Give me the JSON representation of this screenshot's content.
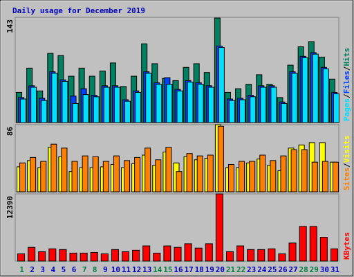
{
  "chart_data": [
    {
      "type": "bar",
      "title": "Daily usage for December 2019",
      "ylim": [
        0,
        143
      ],
      "yticks": [
        143
      ],
      "separator": "/",
      "series": [
        {
          "name": "Hits",
          "color": "#008060",
          "values": [
            41,
            74,
            43,
            94,
            91,
            63,
            74,
            63,
            70,
            81,
            49,
            63,
            107,
            80,
            60,
            57,
            75,
            80,
            68,
            142,
            41,
            46,
            52,
            65,
            52,
            34,
            78,
            103,
            110,
            89,
            59
          ]
        },
        {
          "name": "Files",
          "color": "#0040ff",
          "values": [
            34,
            50,
            33,
            69,
            58,
            36,
            46,
            37,
            50,
            50,
            31,
            43,
            69,
            54,
            61,
            45,
            57,
            54,
            50,
            104,
            32,
            33,
            37,
            50,
            50,
            28,
            69,
            90,
            95,
            75,
            41
          ]
        },
        {
          "name": "Pages",
          "color": "#00e0ff",
          "values": [
            32,
            48,
            30,
            67,
            56,
            26,
            38,
            35,
            48,
            48,
            29,
            41,
            67,
            52,
            52,
            43,
            55,
            52,
            48,
            102,
            30,
            31,
            35,
            48,
            48,
            26,
            67,
            88,
            93,
            73,
            39
          ]
        }
      ]
    },
    {
      "type": "bar",
      "ylim": [
        0,
        86
      ],
      "yticks": [
        86
      ],
      "separator": "/",
      "series": [
        {
          "name": "Visits",
          "color": "#ffff00",
          "values": [
            32,
            40,
            31,
            57,
            45,
            26,
            31,
            31,
            32,
            35,
            31,
            36,
            47,
            34,
            51,
            37,
            45,
            41,
            43,
            86,
            31,
            31,
            37,
            42,
            34,
            27,
            56,
            60,
            63,
            63,
            38
          ]
        },
        {
          "name": "Sites",
          "color": "#ff8000",
          "values": [
            37,
            44,
            39,
            61,
            56,
            39,
            46,
            45,
            39,
            46,
            40,
            44,
            56,
            41,
            57,
            26,
            49,
            46,
            47,
            84,
            35,
            39,
            39,
            47,
            40,
            46,
            54,
            54,
            38,
            39,
            38
          ]
        }
      ]
    },
    {
      "type": "bar",
      "ylim": [
        0,
        12390
      ],
      "yticks": [
        12390
      ],
      "categories": [
        "1",
        "2",
        "3",
        "4",
        "5",
        "6",
        "7",
        "8",
        "9",
        "10",
        "11",
        "12",
        "13",
        "14",
        "15",
        "16",
        "17",
        "18",
        "19",
        "20",
        "21",
        "22",
        "23",
        "24",
        "25",
        "26",
        "27",
        "28",
        "29",
        "30",
        "31"
      ],
      "label_colors": [
        "#008040",
        "#0000c0",
        "#0000c0",
        "#0000c0",
        "#0000c0",
        "#0000c0",
        "#008040",
        "#008040",
        "#0000c0",
        "#0000c0",
        "#0000c0",
        "#0000c0",
        "#0000c0",
        "#008040",
        "#008040",
        "#0000c0",
        "#0000c0",
        "#0000c0",
        "#0000c0",
        "#0000c0",
        "#008040",
        "#008040",
        "#0000c0",
        "#0000c0",
        "#0000c0",
        "#0000c0",
        "#0000c0",
        "#008040",
        "#008040",
        "#0000c0",
        "#0000c0"
      ],
      "series": [
        {
          "name": "KBytes",
          "color": "#ff0000",
          "values": [
            1330,
            2530,
            1730,
            2260,
            2130,
            1470,
            1470,
            1600,
            1330,
            2130,
            1730,
            2000,
            2800,
            1470,
            2800,
            2530,
            3200,
            2400,
            3200,
            12390,
            1730,
            2800,
            2130,
            2130,
            2260,
            1330,
            3330,
            6390,
            6390,
            4400,
            2260
          ]
        }
      ]
    }
  ]
}
